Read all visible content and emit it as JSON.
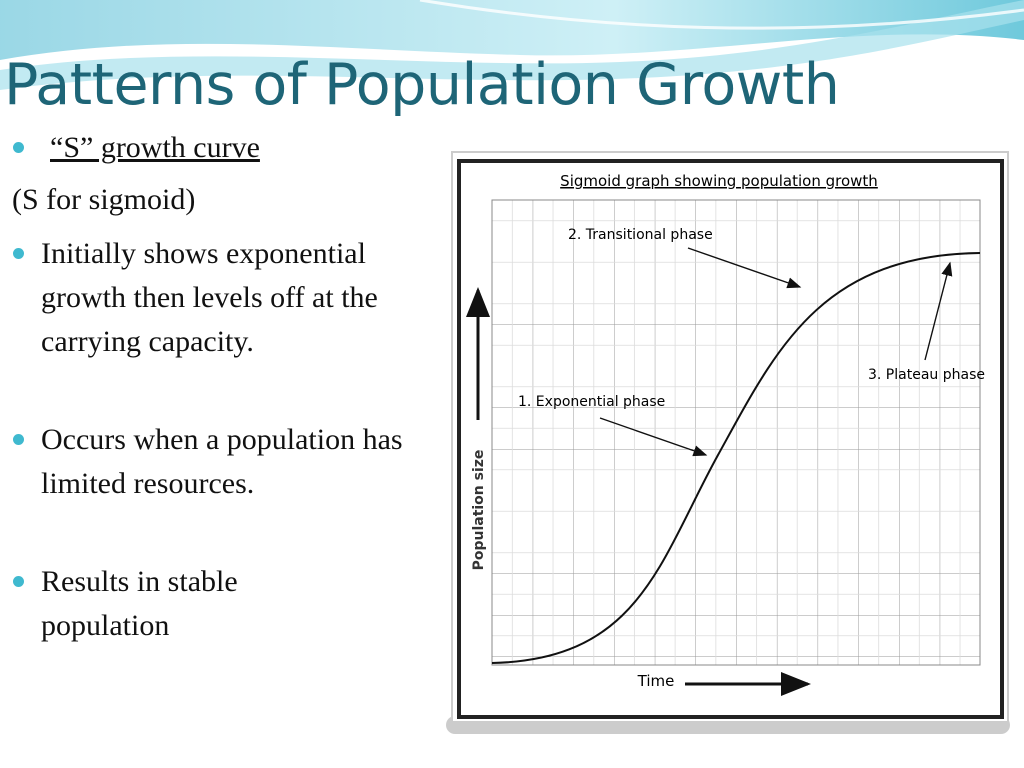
{
  "title": "Patterns of Population Growth",
  "heading_bullet": "“S” growth curve",
  "note": "(S for sigmoid)",
  "bullets": [
    "Initially shows exponential growth then levels off at the carrying capacity.",
    "Occurs when a population has limited resources.",
    "Results in stable population"
  ],
  "figure": {
    "title": "Sigmoid graph showing population growth",
    "y_label": "Population size",
    "x_label": "Time",
    "annotations": [
      "1. Exponential phase",
      "2. Transitional phase",
      "3. Plateau phase"
    ]
  }
}
